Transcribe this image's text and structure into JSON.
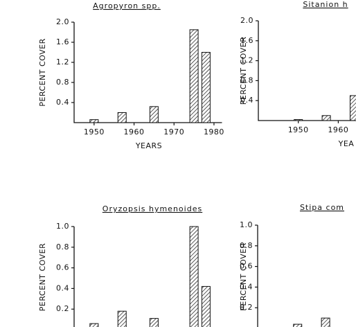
{
  "chart_data": [
    {
      "type": "bar",
      "title": "Agropyron spp.",
      "xlabel": "YEARS",
      "ylabel": "PERCENT COVER",
      "x": [
        1950,
        1957,
        1965,
        1975,
        1978
      ],
      "values": [
        0.06,
        0.2,
        0.32,
        1.85,
        1.4
      ],
      "color": "#111111",
      "xlim": [
        1945,
        1982
      ],
      "xticks": [
        1950,
        1960,
        1970,
        1980
      ],
      "ylim": [
        0,
        2
      ],
      "yticks": [
        0.4,
        0.8,
        1.2,
        1.6,
        {
          "value": 2,
          "label": "2.0"
        }
      ]
    },
    {
      "type": "bar",
      "title": "Sitanion h",
      "xlabel": "YEA",
      "ylabel": "PERCENT COVER",
      "x": [
        1950,
        1957,
        1964
      ],
      "values": [
        0.02,
        0.1,
        0.5
      ],
      "color": "#111111",
      "xlim": [
        1940,
        1982
      ],
      "xticks": [
        1950,
        1960
      ],
      "ylim": [
        0,
        2
      ],
      "yticks": [
        0.4,
        0.8,
        1.2,
        1.6,
        {
          "value": 2,
          "label": "2.0"
        }
      ]
    },
    {
      "type": "bar",
      "title": "Oryzopsis hymenoides",
      "ylabel": "PERCENT COVER",
      "x": [
        1950,
        1957,
        1965,
        1975,
        1978
      ],
      "values": [
        0.06,
        0.18,
        0.11,
        1.0,
        0.42
      ],
      "color": "#111111",
      "xlim": [
        1945,
        1982
      ],
      "ylim": [
        0,
        1
      ],
      "yticks": [
        0.2,
        0.4,
        0.6,
        0.8,
        {
          "value": 1,
          "label": "1.0"
        }
      ]
    },
    {
      "type": "bar",
      "title": "Stipa com",
      "ylabel": "PERCENT COVER",
      "x": [
        1950,
        1957
      ],
      "values": [
        0.04,
        0.1
      ],
      "color": "#111111",
      "xlim": [
        1940,
        1982
      ],
      "ylim": [
        0,
        1
      ],
      "yticks": [
        0.2,
        0.4,
        0.6,
        0.8,
        {
          "value": 1,
          "label": "1.0"
        }
      ]
    }
  ]
}
